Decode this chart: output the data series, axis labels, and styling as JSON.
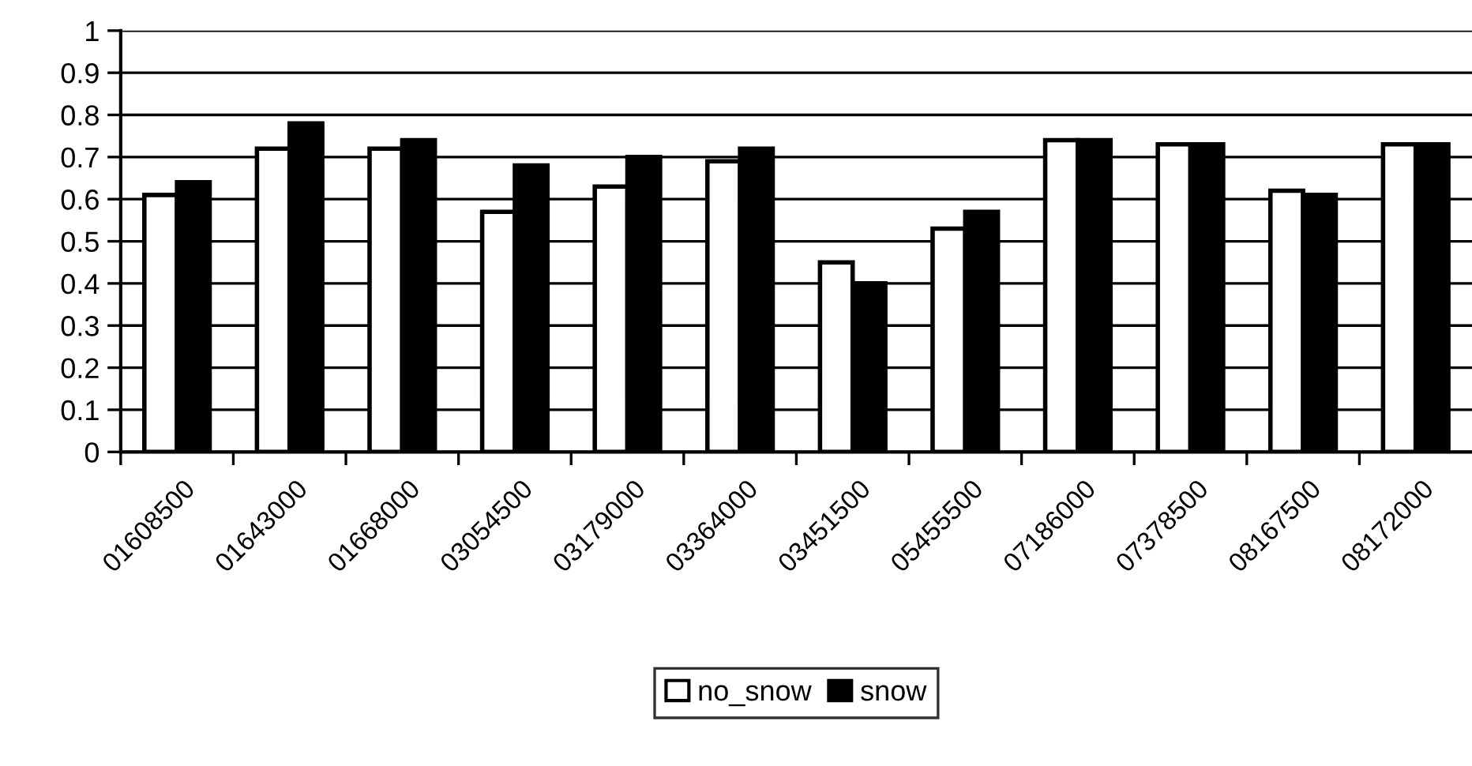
{
  "chart_data": {
    "type": "bar",
    "categories": [
      "01608500",
      "01643000",
      "01668000",
      "03054500",
      "03179000",
      "03364000",
      "03451500",
      "05455500",
      "07186000",
      "07378500",
      "08167500",
      "08172000"
    ],
    "series": [
      {
        "name": "no_snow",
        "color": "#ffffff",
        "values": [
          0.61,
          0.72,
          0.72,
          0.57,
          0.63,
          0.69,
          0.45,
          0.53,
          0.74,
          0.73,
          0.62,
          0.73
        ]
      },
      {
        "name": "snow",
        "color": "#000000",
        "values": [
          0.64,
          0.78,
          0.74,
          0.68,
          0.7,
          0.72,
          0.4,
          0.57,
          0.74,
          0.73,
          0.61,
          0.73
        ]
      }
    ],
    "ylim": [
      0,
      1
    ],
    "yticks": [
      0,
      0.1,
      0.2,
      0.3,
      0.4,
      0.5,
      0.6,
      0.7,
      0.8,
      0.9,
      1
    ],
    "grid": "y",
    "legend": "bottom"
  }
}
